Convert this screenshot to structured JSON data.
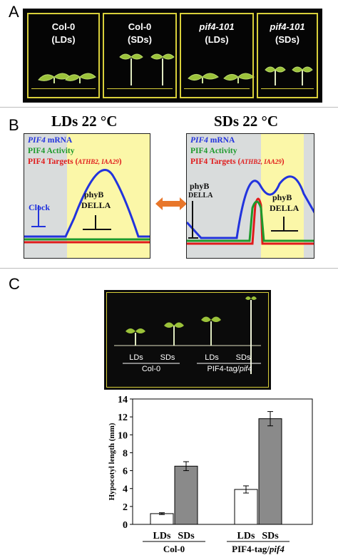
{
  "panelA": {
    "letter": "A",
    "boxes": [
      {
        "genotype": "Col-0",
        "condition": "(LDs)",
        "italic": false
      },
      {
        "genotype": "Col-0",
        "condition": "(SDs)",
        "italic": false
      },
      {
        "genotype": "pif4-101",
        "condition": "(LDs)",
        "italic": true
      },
      {
        "genotype": "pif4-101",
        "condition": "(SDs)",
        "italic": true
      }
    ]
  },
  "panelB": {
    "letter": "B",
    "left_title": "LDs 22 °C",
    "right_title": "SDs 22 °C",
    "legend": {
      "mrna_italic": "PIF4",
      "mrna_rest": " mRNA",
      "activity": "PIF4 Activity",
      "targets": "PIF4 Targets (",
      "targets_genes": "ATHB2, IAA29",
      "targets_close": ")"
    },
    "left_labels": {
      "clock": "Clock",
      "phyb": "phyB",
      "della": "DELLA"
    },
    "right_labels": {
      "phyb_left": "phyB",
      "della_left": "DELLA",
      "phyb_right": "phyB",
      "della_right": "DELLA"
    },
    "colors": {
      "mrna": "#2233dd",
      "activity": "#1e9a2c",
      "targets": "#e01b1b",
      "day": "#fbf7a8",
      "night": "#d9dcdc",
      "arrow": "#e8762a"
    }
  },
  "panelC": {
    "letter": "C",
    "photo_labels": {
      "ld1": "LDs",
      "sd1": "SDs",
      "group1": "Col-0",
      "ld2": "LDs",
      "sd2": "SDs",
      "group2_prefix": "PIF4-tag/",
      "group2_italic": "pif4"
    }
  },
  "chart_data": {
    "type": "bar",
    "ylabel": "Hypocotyl length (mm)",
    "ylim": [
      0,
      14
    ],
    "yticks": [
      "0",
      "2",
      "4",
      "6",
      "8",
      "10",
      "12",
      "14"
    ],
    "groups": [
      {
        "name_prefix": "Col-0",
        "name_italic": ""
      },
      {
        "name_prefix": "PIF4-tag/",
        "name_italic": "pif4"
      }
    ],
    "categories": [
      "LDs",
      "SDs"
    ],
    "series": [
      {
        "values": [
          1.2,
          3.9
        ],
        "errors": [
          0.1,
          0.4
        ],
        "color": "#ffffff"
      },
      {
        "values": [
          6.5,
          11.8
        ],
        "errors": [
          0.5,
          0.8
        ],
        "color": "#8a8a8a"
      }
    ]
  }
}
